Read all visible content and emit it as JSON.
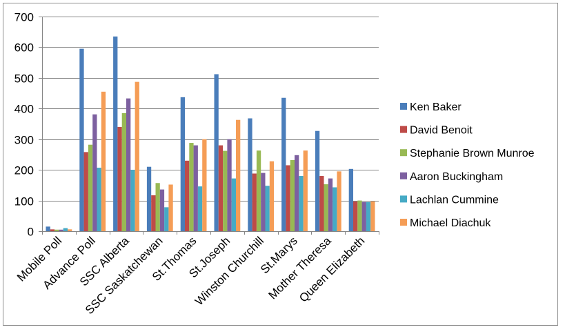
{
  "chart_data": {
    "type": "bar",
    "title": "",
    "xlabel": "",
    "ylabel": "",
    "ylim": [
      0,
      700
    ],
    "yticks": [
      0,
      100,
      200,
      300,
      400,
      500,
      600,
      700
    ],
    "grid": true,
    "legend_position": "right",
    "categories": [
      "Mobile Poll",
      "Advance Poll",
      "SSC Alberta",
      "SSC Saskatchewan",
      "St.Thomas",
      "St.Joseph",
      "Winston Churchill",
      "St.Marys",
      "Mother Theresa",
      "Queen Elizabeth"
    ],
    "series": [
      {
        "name": "Ken Baker",
        "color": "#4A7DBA",
        "values": [
          15,
          595,
          635,
          210,
          437,
          512,
          368,
          435,
          327,
          203
        ]
      },
      {
        "name": "David Benoit",
        "color": "#BE4B48",
        "values": [
          6,
          258,
          340,
          117,
          230,
          280,
          188,
          215,
          180,
          97
        ]
      },
      {
        "name": "Stephanie Brown Munroe",
        "color": "#98B954",
        "values": [
          5,
          282,
          385,
          157,
          288,
          262,
          263,
          232,
          153,
          100
        ]
      },
      {
        "name": "Aaron Buckingham",
        "color": "#7D60A0",
        "values": [
          5,
          381,
          433,
          136,
          280,
          300,
          190,
          248,
          172,
          95
        ]
      },
      {
        "name": "Lachlan Cummine",
        "color": "#46AAC5",
        "values": [
          10,
          207,
          200,
          78,
          146,
          172,
          148,
          180,
          143,
          95
        ]
      },
      {
        "name": "Michael Diachuk",
        "color": "#F59D56",
        "values": [
          6,
          455,
          487,
          152,
          300,
          363,
          228,
          263,
          195,
          97
        ]
      }
    ]
  }
}
